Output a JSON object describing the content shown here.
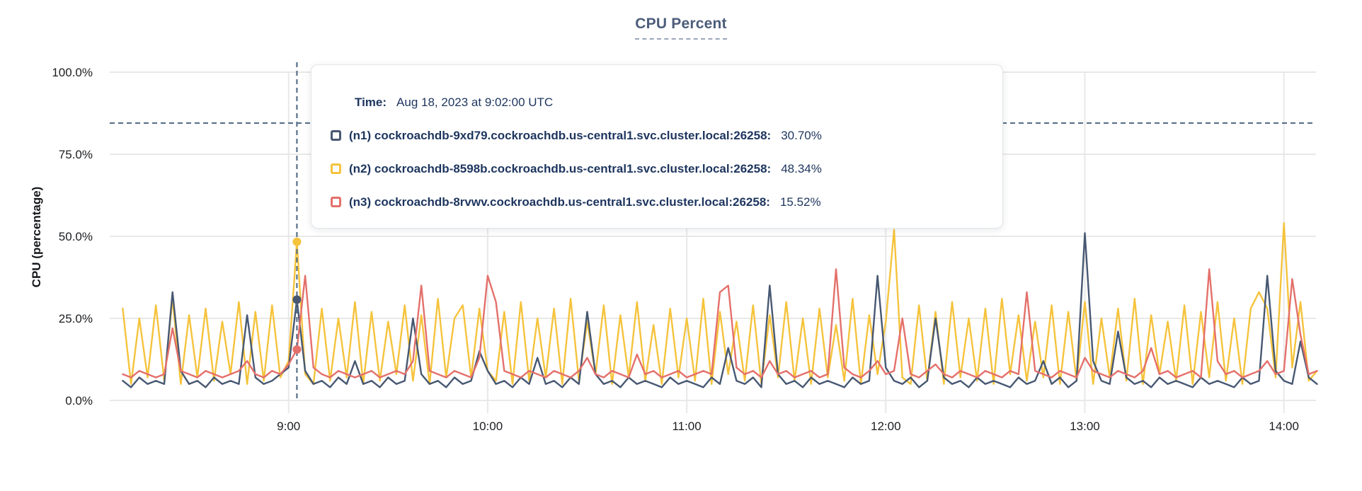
{
  "title": "CPU Percent",
  "y_axis": {
    "label": "CPU (percentage)",
    "ticks": [
      "0.0%",
      "25.0%",
      "50.0%",
      "75.0%",
      "100.0%"
    ]
  },
  "x_axis": {
    "ticks": [
      "9:00",
      "10:00",
      "11:00",
      "12:00",
      "13:00",
      "14:00"
    ]
  },
  "tooltip": {
    "time_label": "Time:",
    "time_value": "Aug 18, 2023 at 9:02:00 UTC",
    "rows": [
      {
        "name": "(n1) cockroachdb-9xd79.cockroachdb.us-central1.svc.cluster.local:26258:",
        "value": "30.70%",
        "color": "#475872"
      },
      {
        "name": "(n2) cockroachdb-8598b.cockroachdb.us-central1.svc.cluster.local:26258:",
        "value": "48.34%",
        "color": "#f5c33c"
      },
      {
        "name": "(n3) cockroachdb-8rvwv.cockroachdb.us-central1.svc.cluster.local:26258:",
        "value": "15.52%",
        "color": "#e4706b"
      }
    ]
  },
  "colors": {
    "grid": "#e8e8e8",
    "crosshair": "#58718a",
    "title": "#4c5d7a",
    "tick_text": "#1b1d20"
  },
  "chart_data": {
    "type": "line",
    "title": "CPU Percent",
    "xlabel": "",
    "ylabel": "CPU (percentage)",
    "ylim": [
      0,
      100
    ],
    "grid": true,
    "legend_position": "tooltip-overlay",
    "y_ticks_percent": [
      0,
      25,
      50,
      75,
      100
    ],
    "x_tick_labels": [
      "9:00",
      "10:00",
      "11:00",
      "12:00",
      "13:00",
      "14:00"
    ],
    "x_tick_minutes": [
      540,
      600,
      660,
      720,
      780,
      840
    ],
    "x_start_min": 490,
    "x_step_min": 2.5,
    "x_range_min": [
      490,
      850
    ],
    "hover": {
      "time_min": 542.5,
      "time_text": "Aug 18, 2023 at 9:02:00 UTC",
      "crosshair_y_percent": 84.5,
      "values": {
        "n1": 30.7,
        "n2": 48.34,
        "n3": 15.52
      }
    },
    "series": [
      {
        "id": "n1",
        "name": "(n1) cockroachdb-9xd79.cockroachdb.us-central1.svc.cluster.local:26258",
        "color": "#475872",
        "values": [
          6,
          4,
          7,
          5,
          6,
          5,
          33,
          9,
          5,
          6,
          4,
          7,
          5,
          6,
          5,
          26,
          7,
          5,
          6,
          8,
          10,
          30.7,
          9,
          5,
          6,
          4,
          7,
          5,
          12,
          5,
          6,
          4,
          7,
          5,
          6,
          25,
          8,
          5,
          6,
          4,
          7,
          5,
          6,
          15,
          9,
          5,
          6,
          4,
          7,
          5,
          13,
          5,
          6,
          4,
          7,
          5,
          27,
          8,
          5,
          6,
          4,
          7,
          5,
          6,
          5,
          4,
          7,
          5,
          6,
          5,
          4,
          7,
          5,
          16,
          6,
          5,
          7,
          4,
          35,
          8,
          5,
          6,
          4,
          7,
          5,
          6,
          5,
          4,
          7,
          5,
          6,
          38,
          10,
          6,
          5,
          7,
          4,
          6,
          25,
          7,
          5,
          6,
          4,
          7,
          5,
          6,
          5,
          4,
          7,
          5,
          6,
          12,
          5,
          7,
          4,
          6,
          51,
          12,
          6,
          5,
          21,
          7,
          5,
          6,
          4,
          7,
          5,
          6,
          5,
          4,
          7,
          5,
          6,
          5,
          4,
          7,
          5,
          6,
          38,
          9,
          6,
          5,
          18,
          7,
          5
        ]
      },
      {
        "id": "n2",
        "name": "(n2) cockroachdb-8598b.cockroachdb.us-central1.svc.cluster.local:26258",
        "color": "#f5c33c",
        "values": [
          28,
          5,
          25,
          7,
          29,
          6,
          31,
          5,
          26,
          7,
          28,
          6,
          24,
          8,
          30,
          5,
          27,
          6,
          29,
          7,
          12,
          48.34,
          8,
          5,
          28,
          6,
          25,
          7,
          30,
          5,
          27,
          6,
          24,
          8,
          29,
          6,
          26,
          5,
          31,
          7,
          25,
          29,
          7,
          28,
          9,
          6,
          27,
          5,
          30,
          6,
          25,
          7,
          28,
          5,
          31,
          6,
          24,
          8,
          29,
          5,
          26,
          7,
          30,
          6,
          23,
          5,
          28,
          7,
          25,
          6,
          31,
          5,
          27,
          8,
          24,
          6,
          29,
          5,
          26,
          7,
          30,
          6,
          25,
          5,
          28,
          7,
          23,
          6,
          31,
          5,
          26,
          8,
          24,
          52,
          7,
          5,
          29,
          6,
          27,
          5,
          30,
          7,
          25,
          6,
          28,
          5,
          31,
          8,
          26,
          6,
          24,
          7,
          29,
          5,
          27,
          6,
          30,
          5,
          25,
          7,
          28,
          6,
          31,
          5,
          26,
          8,
          24,
          6,
          29,
          5,
          27,
          7,
          30,
          6,
          25,
          5,
          28,
          33,
          28,
          7,
          54,
          10,
          30,
          6,
          9
        ]
      },
      {
        "id": "n3",
        "name": "(n3) cockroachdb-8rvwv.cockroachdb.us-central1.svc.cluster.local:26258",
        "color": "#e4706b",
        "values": [
          8,
          7,
          9,
          8,
          7,
          8,
          22,
          9,
          8,
          7,
          9,
          8,
          7,
          8,
          9,
          12,
          8,
          7,
          9,
          8,
          11,
          15.52,
          38,
          10,
          8,
          7,
          9,
          8,
          7,
          8,
          9,
          7,
          8,
          9,
          8,
          12,
          35,
          9,
          8,
          7,
          9,
          8,
          7,
          13,
          38,
          30,
          9,
          8,
          7,
          9,
          8,
          7,
          9,
          8,
          7,
          9,
          13,
          8,
          7,
          9,
          8,
          7,
          14,
          8,
          9,
          7,
          8,
          9,
          7,
          8,
          9,
          8,
          33,
          35,
          10,
          8,
          9,
          7,
          12,
          8,
          9,
          7,
          8,
          9,
          7,
          8,
          40,
          10,
          8,
          7,
          9,
          12,
          8,
          9,
          25,
          8,
          7,
          9,
          11,
          8,
          7,
          9,
          8,
          7,
          9,
          8,
          7,
          9,
          8,
          33,
          9,
          8,
          7,
          9,
          8,
          7,
          13,
          9,
          8,
          7,
          9,
          8,
          7,
          9,
          16,
          8,
          9,
          7,
          8,
          9,
          7,
          40,
          12,
          8,
          9,
          7,
          8,
          9,
          12,
          8,
          9,
          37,
          20,
          8,
          9
        ]
      }
    ]
  }
}
